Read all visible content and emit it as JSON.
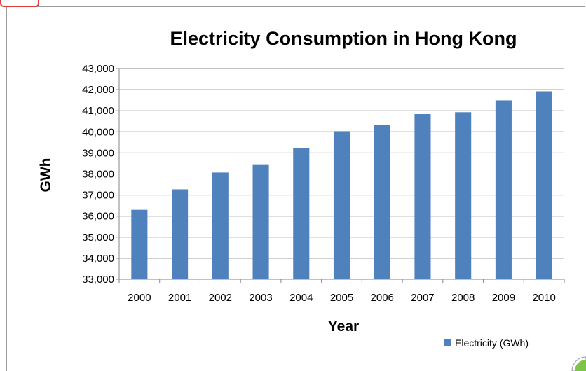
{
  "chart_data": {
    "type": "bar",
    "title": "Electricity Consumption in Hong Kong",
    "xlabel": "Year",
    "ylabel": "GWh",
    "categories": [
      "2000",
      "2001",
      "2002",
      "2003",
      "2004",
      "2005",
      "2006",
      "2007",
      "2008",
      "2009",
      "2010"
    ],
    "series": [
      {
        "name": "Electricity (GWh)",
        "color": "#4f81bd",
        "values": [
          36300,
          37270,
          38070,
          38460,
          39240,
          40030,
          40340,
          40840,
          40930,
          41490,
          41920
        ]
      }
    ],
    "ylim": [
      33000,
      43000
    ],
    "yticks": [
      "33,000",
      "34,000",
      "35,000",
      "36,000",
      "37,000",
      "38,000",
      "39,000",
      "40,000",
      "41,000",
      "42,000",
      "43,000"
    ],
    "grid": true,
    "legend": "bottom-right"
  }
}
